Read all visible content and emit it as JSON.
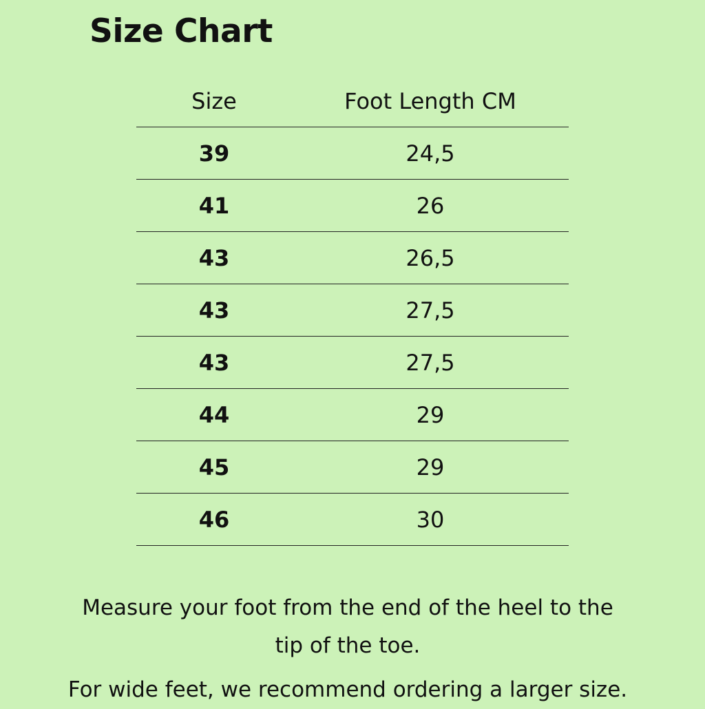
{
  "title": "Size Chart",
  "table": {
    "headers": [
      "Size",
      "Foot Length CM"
    ],
    "rows": [
      [
        "39",
        "24,5"
      ],
      [
        "41",
        "26"
      ],
      [
        "43",
        "26,5"
      ],
      [
        "43",
        "27,5"
      ],
      [
        "43",
        "27,5"
      ],
      [
        "44",
        "29"
      ],
      [
        "45",
        "29"
      ],
      [
        "46",
        "30"
      ]
    ]
  },
  "notes": {
    "measure_line1": "Measure your foot from the end of the heel to the",
    "measure_line2": "tip of the toe.",
    "wide_feet": "For wide feet, we recommend ordering a larger size."
  },
  "colors": {
    "background": "#ccf2b8",
    "text": "#111111"
  }
}
